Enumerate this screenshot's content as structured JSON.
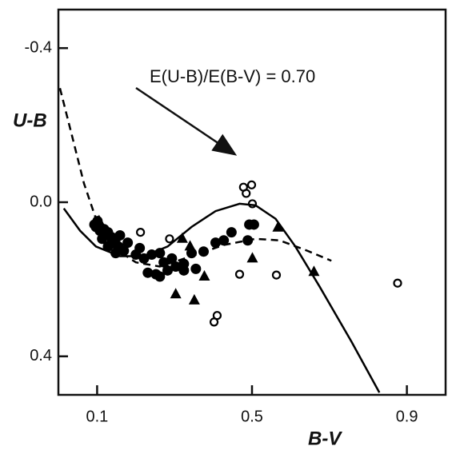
{
  "chart_data": {
    "type": "scatter",
    "xlabel": "B-V",
    "ylabel": "U-B",
    "annotation": "E(U-B)/E(B-V) = 0.70",
    "xlim": [
      0,
      1
    ],
    "ylim": [
      0.5,
      -0.5
    ],
    "xticks": [
      0.1,
      0.5,
      0.9
    ],
    "yticks": [
      -0.4,
      {
        "value": 0,
        "label": "0.0"
      },
      0.4
    ],
    "series": [
      {
        "marker": "filled-circle",
        "color": "#000000",
        "x": [
          0.093,
          0.101,
          0.097,
          0.107,
          0.118,
          0.128,
          0.138,
          0.148,
          0.159,
          0.155,
          0.138,
          0.113,
          0.169,
          0.179,
          0.128,
          0.148,
          0.21,
          0.2,
          0.221,
          0.241,
          0.262,
          0.231,
          0.252,
          0.262,
          0.282,
          0.272,
          0.293,
          0.303,
          0.324,
          0.324,
          0.355,
          0.344,
          0.375,
          0.406,
          0.427,
          0.447,
          0.489,
          0.493,
          0.505
        ],
        "values": [
          0.058,
          0.049,
          0.064,
          0.074,
          0.07,
          0.078,
          0.091,
          0.095,
          0.086,
          0.115,
          0.105,
          0.095,
          0.126,
          0.105,
          0.115,
          0.132,
          0.119,
          0.136,
          0.146,
          0.136,
          0.132,
          0.183,
          0.187,
          0.193,
          0.177,
          0.156,
          0.146,
          0.167,
          0.16,
          0.177,
          0.173,
          0.132,
          0.128,
          0.105,
          0.099,
          0.078,
          0.099,
          0.058,
          0.058
        ]
      },
      {
        "marker": "open-circle",
        "color": "#000000",
        "x": [
          0.212,
          0.287,
          0.468,
          0.563,
          0.402,
          0.41,
          0.478,
          0.499,
          0.485,
          0.501,
          0.876
        ],
        "values": [
          0.078,
          0.095,
          0.187,
          0.189,
          0.311,
          0.294,
          -0.039,
          -0.045,
          -0.023,
          0.004,
          0.21
        ]
      },
      {
        "marker": "triangle",
        "color": "#000000",
        "x": [
          0.105,
          0.32,
          0.34,
          0.377,
          0.351,
          0.303,
          0.501,
          0.567,
          0.66
        ],
        "values": [
          0.049,
          0.095,
          0.115,
          0.193,
          0.255,
          0.239,
          0.146,
          0.066,
          0.181
        ]
      },
      {
        "marker": "solid-line",
        "color": "#000000",
        "x": [
          0.014,
          0.056,
          0.097,
          0.159,
          0.221,
          0.282,
          0.344,
          0.406,
          0.468,
          0.509,
          0.561,
          0.612,
          0.674,
          0.757,
          0.829
        ],
        "values": [
          0.016,
          0.074,
          0.115,
          0.14,
          0.14,
          0.115,
          0.064,
          0.023,
          0.004,
          0.008,
          0.043,
          0.115,
          0.218,
          0.362,
          0.494
        ]
      },
      {
        "marker": "dashed-line",
        "color": "#000000",
        "x": [
          0.004,
          0.035,
          0.066,
          0.097,
          0.138,
          0.2,
          0.262,
          0.344,
          0.427,
          0.509,
          0.571,
          0.643,
          0.705
        ],
        "values": [
          -0.296,
          -0.173,
          -0.049,
          0.043,
          0.115,
          0.156,
          0.167,
          0.14,
          0.111,
          0.095,
          0.099,
          0.126,
          0.152
        ]
      }
    ]
  }
}
